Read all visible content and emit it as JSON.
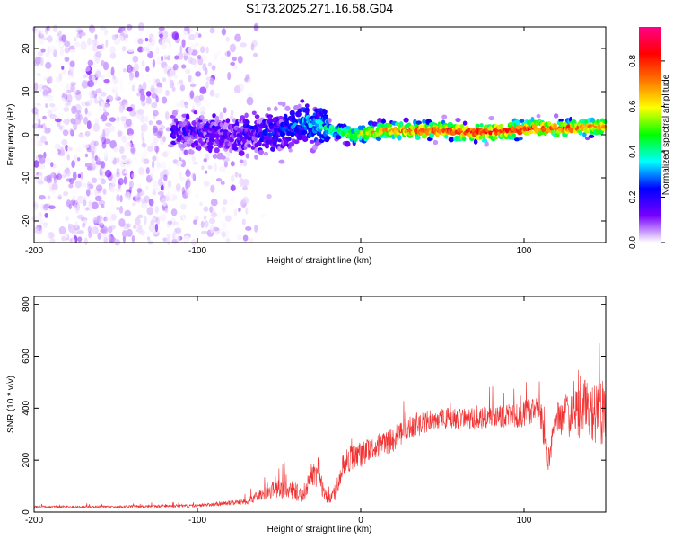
{
  "title": "S173.2025.271.16.58.G04",
  "colors": {
    "snr_line": "#f03232",
    "frame": "#000000",
    "background": "#ffffff"
  },
  "chart_data": [
    {
      "type": "heatmap",
      "xlabel": "Height of straight line (km)",
      "ylabel": "Frequency (Hz)",
      "xlim": [
        -200,
        150
      ],
      "ylim": [
        -25,
        25
      ],
      "xticks": [
        -200,
        -100,
        0,
        100
      ],
      "yticks": [
        -20,
        -10,
        0,
        10,
        20
      ],
      "colorbar": {
        "label": "Normalized spectral amplitude",
        "range": [
          0,
          0.95
        ],
        "ticks": [
          0,
          0.2,
          0.4,
          0.6,
          0.8
        ],
        "tick_labels": [
          "0.0",
          "0.2",
          "0.4",
          "0.6",
          "0.8"
        ],
        "colormap": [
          "#ffffff",
          "#7700ff",
          "#0000ff",
          "#00ffff",
          "#00ff00",
          "#ffff00",
          "#ff7700",
          "#ff0000",
          "#ff0088"
        ]
      },
      "ridge": {
        "description": "main spectral ridge frequency (Hz) vs height (km)",
        "x": [
          -110,
          -90,
          -70,
          -55,
          -45,
          -35,
          -25,
          -15,
          -5,
          5,
          15,
          30,
          50,
          70,
          90,
          110,
          130,
          150
        ],
        "freq": [
          1,
          0,
          0,
          0,
          1.5,
          3,
          2,
          1,
          0,
          0.5,
          1,
          1,
          1,
          0.5,
          1,
          1.5,
          1.5,
          2
        ],
        "amplitude": [
          0.15,
          0.15,
          0.15,
          0.2,
          0.25,
          0.3,
          0.35,
          0.45,
          0.55,
          0.6,
          0.7,
          0.75,
          0.8,
          0.85,
          0.85,
          0.8,
          0.75,
          0.7
        ]
      },
      "scatter_region": {
        "description": "diffuse noise, full frequency band",
        "x_range": [
          -200,
          -70
        ],
        "amplitude_range": [
          0.0,
          0.12
        ]
      }
    },
    {
      "type": "line",
      "xlabel": "Height of straight line (km)",
      "ylabel": "SNR (10 * v/v)",
      "xlim": [
        -200,
        150
      ],
      "ylim": [
        0,
        830
      ],
      "xticks": [
        -200,
        -100,
        0,
        100
      ],
      "yticks": [
        0,
        200,
        400,
        600,
        800
      ],
      "series": [
        {
          "name": "SNR",
          "envelope": {
            "x": [
              -200,
              -150,
              -100,
              -80,
              -70,
              -60,
              -50,
              -40,
              -35,
              -30,
              -25,
              -20,
              -15,
              -10,
              0,
              10,
              20,
              30,
              50,
              70,
              90,
              100,
              110,
              115,
              120,
              130,
              140,
              150
            ],
            "mean": [
              20,
              20,
              25,
              35,
              40,
              70,
              90,
              80,
              60,
              150,
              120,
              40,
              80,
              200,
              220,
              250,
              280,
              330,
              360,
              360,
              370,
              380,
              380,
              200,
              360,
              380,
              400,
              380
            ],
            "spread": [
              8,
              8,
              10,
              15,
              20,
              40,
              60,
              60,
              40,
              80,
              80,
              30,
              60,
              90,
              80,
              80,
              80,
              80,
              70,
              70,
              80,
              90,
              100,
              80,
              120,
              150,
              220,
              220
            ]
          }
        }
      ]
    }
  ]
}
